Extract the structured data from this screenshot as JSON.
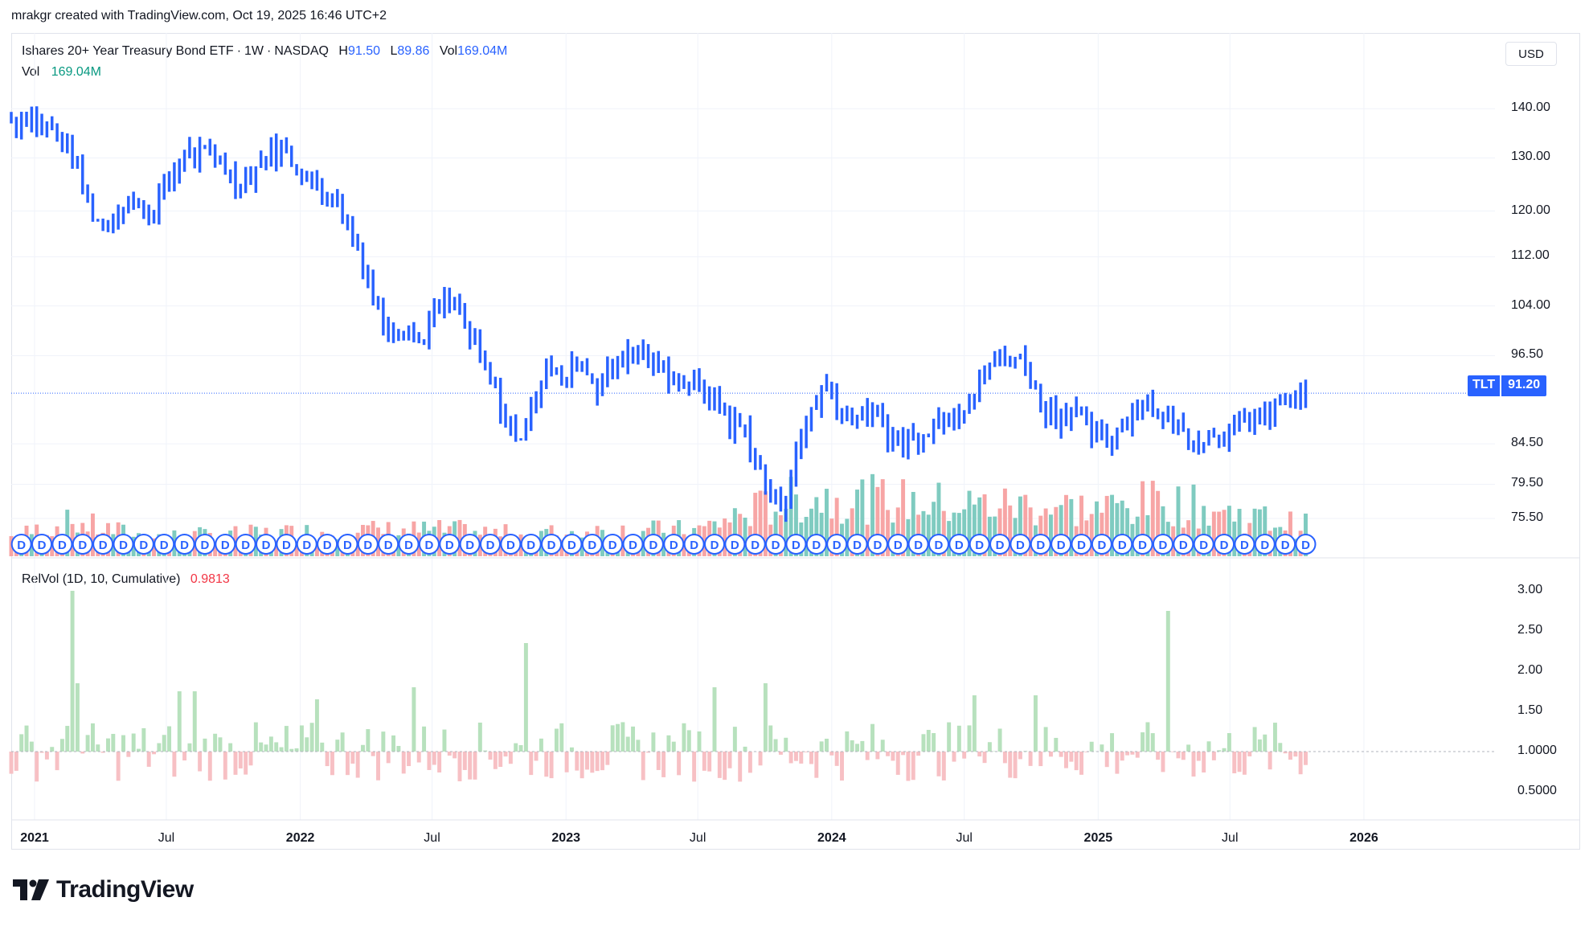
{
  "attribution": "mrakgr created with TradingView.com, Oct 19, 2025 16:46 UTC+2",
  "legend": {
    "name": "Ishares 20+ Year Treasury Bond ETF",
    "interval": "1W",
    "exchange": "NASDAQ",
    "h_label": "H",
    "h_value": "91.50",
    "l_label": "L",
    "l_value": "89.86",
    "vol_label": "Vol",
    "vol_value": "169.04M",
    "vol_row_label": "Vol",
    "vol_row_value": "169.04M"
  },
  "currency": "USD",
  "price_tag": {
    "ticker": "TLT",
    "value": "91.20"
  },
  "rv_legend": {
    "label": "RelVol (1D, 10, Cumulative)",
    "value": "0.9813"
  },
  "brand": "TradingView",
  "colors": {
    "up": "#2962ff",
    "down": "#2962ff",
    "vol_up": "#7fcbc0",
    "vol_down": "#f7a5a5",
    "rv_up": "#b7e1bd",
    "rv_down": "#f7c0c4",
    "dividend": "#2962ff"
  },
  "dividend_marker": "D",
  "chart_data": [
    {
      "type": "bar",
      "title": "Ishares 20+ Year Treasury Bond ETF · 1W · NASDAQ",
      "scale": "log",
      "ylim": [
        71.5,
        147
      ],
      "y_ticks": [
        "140.00",
        "130.00",
        "120.00",
        "112.00",
        "104.00",
        "96.50",
        "91.20",
        "84.50",
        "79.50",
        "75.50"
      ],
      "x_ticks": [
        {
          "label": "2021",
          "date": "2021-01-01",
          "year": true
        },
        {
          "label": "Jul",
          "date": "2021-07-01",
          "year": false
        },
        {
          "label": "2022",
          "date": "2022-01-01",
          "year": true
        },
        {
          "label": "Jul",
          "date": "2022-07-01",
          "year": false
        },
        {
          "label": "2023",
          "date": "2023-01-01",
          "year": true
        },
        {
          "label": "Jul",
          "date": "2023-07-01",
          "year": false
        },
        {
          "label": "2024",
          "date": "2024-01-01",
          "year": true
        },
        {
          "label": "Jul",
          "date": "2024-07-01",
          "year": false
        },
        {
          "label": "2025",
          "date": "2025-01-01",
          "year": true
        },
        {
          "label": "Jul",
          "date": "2025-07-01",
          "year": false
        },
        {
          "label": "2026",
          "date": "2026-01-01",
          "year": true
        }
      ],
      "x_range": [
        "2020-11-30",
        "2026-06-30"
      ],
      "last_price": 91.2,
      "anchors": [
        [
          "2020-12-07",
          137.5
        ],
        [
          "2020-12-21",
          139
        ],
        [
          "2021-01-04",
          137
        ],
        [
          "2021-01-18",
          136
        ],
        [
          "2021-02-15",
          132
        ],
        [
          "2021-03-01",
          128
        ],
        [
          "2021-03-15",
          121
        ],
        [
          "2021-04-05",
          117.5
        ],
        [
          "2021-04-19",
          120
        ],
        [
          "2021-05-10",
          121.5
        ],
        [
          "2021-06-07",
          120
        ],
        [
          "2021-07-05",
          125.5
        ],
        [
          "2021-07-26",
          131
        ],
        [
          "2021-08-23",
          130
        ],
        [
          "2021-09-13",
          130
        ],
        [
          "2021-10-04",
          125
        ],
        [
          "2021-10-25",
          127
        ],
        [
          "2021-11-22",
          132
        ],
        [
          "2021-12-13",
          131
        ],
        [
          "2022-01-10",
          126
        ],
        [
          "2022-01-31",
          124
        ],
        [
          "2022-02-21",
          121
        ],
        [
          "2022-03-14",
          116
        ],
        [
          "2022-04-11",
          106
        ],
        [
          "2022-04-25",
          102
        ],
        [
          "2022-05-23",
          101
        ],
        [
          "2022-06-13",
          98.5
        ],
        [
          "2022-06-27",
          101.5
        ],
        [
          "2022-07-18",
          104
        ],
        [
          "2022-08-08",
          103
        ],
        [
          "2022-08-22",
          99
        ],
        [
          "2022-09-12",
          94
        ],
        [
          "2022-10-03",
          90
        ],
        [
          "2022-10-24",
          84.5
        ],
        [
          "2022-11-14",
          88.5
        ],
        [
          "2022-12-05",
          96.5
        ],
        [
          "2022-12-26",
          92
        ],
        [
          "2023-01-16",
          96
        ],
        [
          "2023-02-13",
          92.5
        ],
        [
          "2023-03-13",
          96
        ],
        [
          "2023-04-10",
          97
        ],
        [
          "2023-05-08",
          95
        ],
        [
          "2023-06-05",
          93
        ],
        [
          "2023-07-03",
          92
        ],
        [
          "2023-07-24",
          90.5
        ],
        [
          "2023-08-14",
          87
        ],
        [
          "2023-09-04",
          86.5
        ],
        [
          "2023-10-02",
          79
        ],
        [
          "2023-10-23",
          77
        ],
        [
          "2023-11-13",
          83
        ],
        [
          "2023-12-04",
          89
        ],
        [
          "2023-12-25",
          92.5
        ],
        [
          "2024-01-15",
          89
        ],
        [
          "2024-02-12",
          88
        ],
        [
          "2024-03-11",
          87
        ],
        [
          "2024-04-08",
          84
        ],
        [
          "2024-04-29",
          86
        ],
        [
          "2024-05-27",
          88
        ],
        [
          "2024-06-17",
          89
        ],
        [
          "2024-07-15",
          91
        ],
        [
          "2024-08-05",
          95
        ],
        [
          "2024-09-02",
          97
        ],
        [
          "2024-09-23",
          95
        ],
        [
          "2024-10-14",
          90
        ],
        [
          "2024-11-04",
          88
        ],
        [
          "2024-11-25",
          89.5
        ],
        [
          "2024-12-16",
          86
        ],
        [
          "2025-01-13",
          84.5
        ],
        [
          "2025-02-03",
          87
        ],
        [
          "2025-03-03",
          90.5
        ],
        [
          "2025-03-24",
          88.5
        ],
        [
          "2025-04-07",
          87.5
        ],
        [
          "2025-04-28",
          86
        ],
        [
          "2025-05-19",
          85
        ],
        [
          "2025-06-16",
          86.5
        ],
        [
          "2025-07-07",
          86
        ],
        [
          "2025-07-28",
          87.5
        ],
        [
          "2025-08-18",
          87.5
        ],
        [
          "2025-09-08",
          90
        ],
        [
          "2025-09-29",
          90
        ],
        [
          "2025-10-13",
          91.2
        ]
      ],
      "volume_ylim": [
        0,
        250
      ],
      "volume_anchors": [
        [
          "2020-11-30",
          45
        ],
        [
          "2021-02-22",
          80
        ],
        [
          "2021-06-01",
          45
        ],
        [
          "2021-10-01",
          50
        ],
        [
          "2022-03-01",
          60
        ],
        [
          "2022-08-01",
          60
        ],
        [
          "2022-11-01",
          50
        ],
        [
          "2023-03-01",
          60
        ],
        [
          "2023-07-01",
          60
        ],
        [
          "2023-09-01",
          100
        ],
        [
          "2023-11-01",
          130
        ],
        [
          "2024-01-01",
          140
        ],
        [
          "2024-07-01",
          120
        ],
        [
          "2024-10-01",
          120
        ],
        [
          "2025-01-01",
          110
        ],
        [
          "2025-04-01",
          130
        ],
        [
          "2025-06-01",
          110
        ],
        [
          "2025-10-13",
          70
        ]
      ],
      "dividend_every_weeks": 4
    },
    {
      "type": "bar",
      "title": "RelVol (1D, 10, Cumulative)",
      "baseline": 1.0,
      "ylim": [
        0.4,
        3.05
      ],
      "y_ticks": [
        "3.00",
        "2.50",
        "2.00",
        "1.50",
        "1.0000",
        "0.5000"
      ],
      "spikes": [
        [
          "2021-02-22",
          3.0
        ],
        [
          "2021-03-01",
          1.85
        ],
        [
          "2022-11-07",
          2.35
        ],
        [
          "2023-10-02",
          1.85
        ],
        [
          "2025-04-07",
          2.75
        ],
        [
          "2021-07-19",
          1.75
        ],
        [
          "2021-08-09",
          1.75
        ],
        [
          "2022-06-06",
          1.8
        ],
        [
          "2023-07-24",
          1.8
        ],
        [
          "2024-07-15",
          1.7
        ],
        [
          "2024-10-07",
          1.7
        ],
        [
          "2022-01-24",
          1.65
        ]
      ]
    }
  ]
}
